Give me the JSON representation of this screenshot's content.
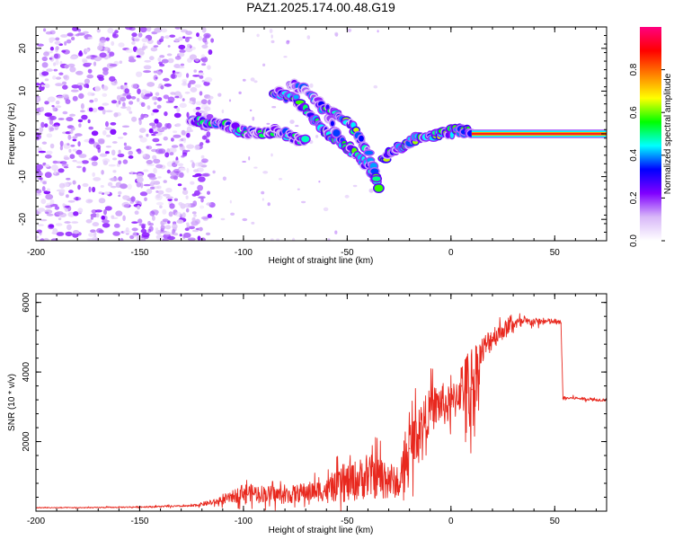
{
  "title": "PAZ1.2025.174.00.48.G19",
  "chart_data": [
    {
      "type": "heatmap",
      "xlabel": "Height of straight line (km)",
      "ylabel": "Frequency (Hz)",
      "xlim": [
        -200,
        75
      ],
      "ylim": [
        -25,
        25
      ],
      "xticks": [
        -200,
        -150,
        -100,
        -50,
        0,
        50
      ],
      "yticks": [
        -20,
        -10,
        0,
        10,
        20
      ],
      "colorbar": {
        "label": "Normalized spectral amplitude",
        "range": [
          0,
          1
        ],
        "ticks": [
          "0.0",
          "0.2",
          "0.4",
          "0.6",
          "0.8"
        ],
        "tick_values": [
          0,
          0.2,
          0.4,
          0.6,
          0.8
        ],
        "colors": [
          "#ffffff",
          "#d8b8f8",
          "#8000ff",
          "#0000ff",
          "#00ffff",
          "#00ff00",
          "#ffff00",
          "#ff8000",
          "#ff0000",
          "#ff0080"
        ]
      },
      "tracks": [
        {
          "x": [
            -125,
            -110,
            -100,
            -92,
            -85,
            -80,
            -75,
            -70
          ],
          "y": [
            3,
            2,
            0.5,
            0,
            0.5,
            0,
            -1,
            -2
          ],
          "amplitude": 0.45
        },
        {
          "x": [
            -85,
            -75,
            -70,
            -65,
            -60,
            -55,
            -50,
            -45,
            -40,
            -35
          ],
          "y": [
            10,
            8,
            6,
            3,
            0,
            -1,
            -3,
            -5,
            -8,
            -12
          ],
          "amplitude": 0.5
        },
        {
          "x": [
            -78,
            -70,
            -65,
            -60,
            -55
          ],
          "y": [
            12,
            10,
            8,
            5,
            0
          ],
          "amplitude": 0.35
        },
        {
          "x": [
            -60,
            -55,
            -50,
            -45,
            -40,
            -35
          ],
          "y": [
            6,
            5,
            3,
            0,
            -4,
            -12
          ],
          "amplitude": 0.55
        },
        {
          "x": [
            -33,
            -25,
            -15,
            -5,
            5,
            10
          ],
          "y": [
            -6,
            -3,
            -1,
            0,
            1,
            0.5
          ],
          "amplitude": 0.55
        },
        {
          "x": [
            10,
            20,
            30,
            40,
            50,
            60,
            75
          ],
          "y": [
            0,
            0,
            0,
            0,
            0,
            0,
            0
          ],
          "amplitude": 0.85
        }
      ],
      "noise_region_x": [
        -200,
        -115
      ],
      "noise_amplitude": 0.15
    },
    {
      "type": "line",
      "xlabel": "Height of straight line (km)",
      "ylabel": "SNR (10 * v/v)",
      "xlim": [
        -200,
        75
      ],
      "ylim": [
        0,
        6250
      ],
      "xticks": [
        -200,
        -150,
        -100,
        -50,
        0,
        50
      ],
      "yticks": [
        2000,
        4000,
        6000
      ],
      "line_color": "#e8281e",
      "x": [
        -200,
        -175,
        -150,
        -125,
        -110,
        -100,
        -90,
        -80,
        -70,
        -60,
        -50,
        -40,
        -30,
        -25,
        -20,
        -15,
        -10,
        -5,
        0,
        5,
        10,
        15,
        20,
        30,
        40,
        50,
        53,
        54,
        60,
        70,
        75
      ],
      "y": [
        100,
        100,
        120,
        150,
        300,
        550,
        500,
        450,
        550,
        600,
        800,
        1000,
        950,
        700,
        1800,
        2400,
        2900,
        3100,
        3000,
        3600,
        3500,
        4600,
        5000,
        5400,
        5450,
        5450,
        5400,
        3250,
        3250,
        3200,
        3200
      ],
      "noise_amplitude": [
        20,
        20,
        30,
        40,
        150,
        350,
        350,
        350,
        400,
        450,
        800,
        900,
        900,
        400,
        1200,
        1000,
        900,
        900,
        800,
        1000,
        2000,
        600,
        500,
        250,
        150,
        120,
        120,
        60,
        60,
        60,
        60
      ]
    }
  ]
}
